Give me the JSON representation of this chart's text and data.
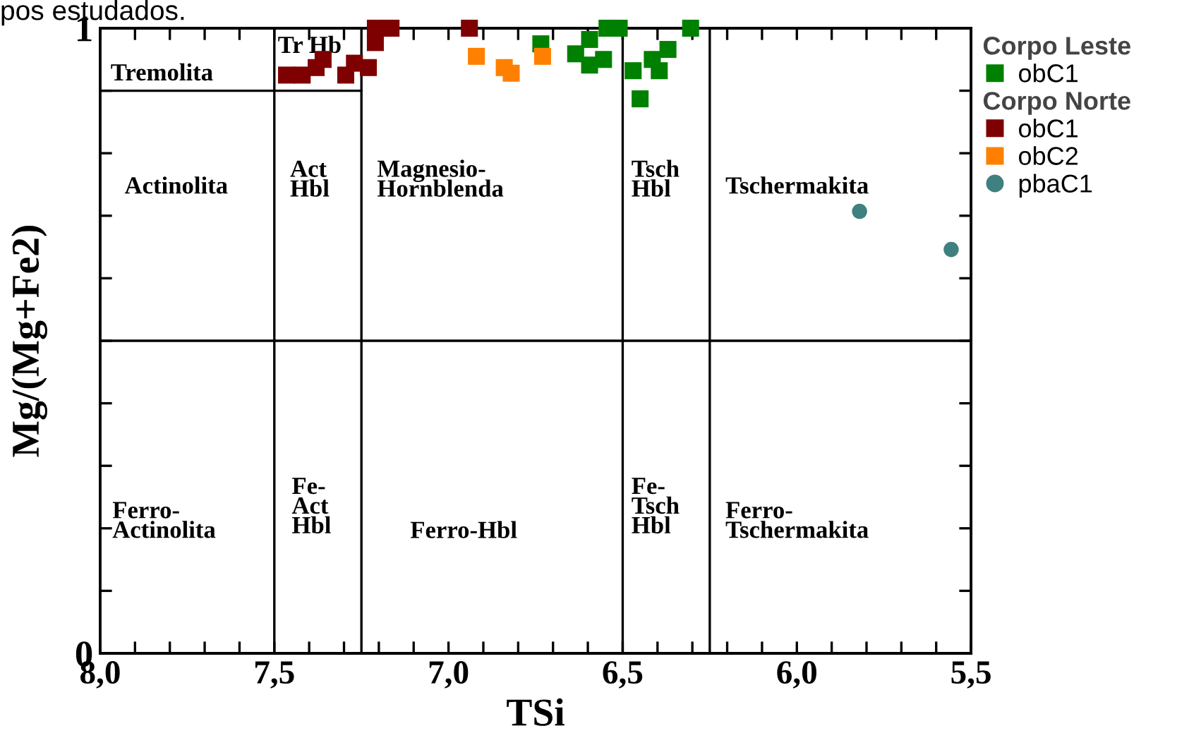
{
  "chart_data": {
    "type": "scatter",
    "xlabel": "TSi",
    "ylabel": "Mg/(Mg+Fe2)",
    "xlim": [
      8.0,
      5.5
    ],
    "ylim": [
      0,
      1
    ],
    "xticks": [
      {
        "value": 8.0,
        "label": "8,0"
      },
      {
        "value": 7.9,
        "label": null
      },
      {
        "value": 7.8,
        "label": null
      },
      {
        "value": 7.7,
        "label": null
      },
      {
        "value": 7.6,
        "label": null
      },
      {
        "value": 7.5,
        "label": "7,5"
      },
      {
        "value": 7.4,
        "label": null
      },
      {
        "value": 7.3,
        "label": null
      },
      {
        "value": 7.2,
        "label": null
      },
      {
        "value": 7.1,
        "label": null
      },
      {
        "value": 7.0,
        "label": "7,0"
      },
      {
        "value": 6.9,
        "label": null
      },
      {
        "value": 6.8,
        "label": null
      },
      {
        "value": 6.7,
        "label": null
      },
      {
        "value": 6.6,
        "label": null
      },
      {
        "value": 6.5,
        "label": "6,5"
      },
      {
        "value": 6.4,
        "label": null
      },
      {
        "value": 6.3,
        "label": null
      },
      {
        "value": 6.2,
        "label": null
      },
      {
        "value": 6.1,
        "label": null
      },
      {
        "value": 6.0,
        "label": "6,0"
      },
      {
        "value": 5.9,
        "label": null
      },
      {
        "value": 5.8,
        "label": null
      },
      {
        "value": 5.7,
        "label": null
      },
      {
        "value": 5.6,
        "label": null
      },
      {
        "value": 5.5,
        "label": "5,5"
      }
    ],
    "yticks": [
      0,
      {
        "value": 0.1,
        "label": null
      },
      {
        "value": 0.2,
        "label": null
      },
      {
        "value": 0.3,
        "label": null
      },
      {
        "value": 0.4,
        "label": null
      },
      {
        "value": 0.5,
        "label": null
      },
      {
        "value": 0.6,
        "label": null
      },
      {
        "value": 0.7,
        "label": null
      },
      {
        "value": 0.8,
        "label": null
      },
      {
        "value": 0.9,
        "label": null
      },
      1
    ],
    "grid": false,
    "legend": "top right",
    "series": [
      {
        "name": "obC1",
        "color": "#008000",
        "marker": "square",
        "x": [
          6.735,
          6.575,
          6.545,
          6.51,
          6.595,
          6.635,
          6.595,
          6.555,
          6.47,
          6.415,
          6.395,
          6.37,
          6.45,
          6.305
        ],
        "values": [
          0.975,
          null,
          1.0,
          1.0,
          0.982,
          0.959,
          0.941,
          0.95,
          0.932,
          0.95,
          0.932,
          0.966,
          0.887,
          1.0
        ]
      },
      {
        "name": "obC1",
        "color": "#7f0000",
        "marker": "square",
        "x": [
          7.465,
          7.42,
          7.38,
          7.36,
          7.295,
          7.27,
          7.23,
          7.21,
          7.21,
          7.165,
          6.94
        ],
        "values": [
          0.925,
          0.925,
          0.937,
          0.95,
          0.925,
          0.944,
          0.937,
          0.977,
          1.0,
          1.0,
          1.0
        ]
      },
      {
        "name": "obC2",
        "color": "#ff8000",
        "marker": "square",
        "x": [
          6.92,
          6.84,
          6.82,
          6.73
        ],
        "values": [
          0.955,
          0.937,
          0.928,
          0.955
        ]
      },
      {
        "name": "pbaC1",
        "color": "#3f8080",
        "marker": "circle",
        "x": [
          5.82,
          5.557
        ],
        "values": [
          0.707,
          0.646
        ]
      },
      {
        "type": "line",
        "color": "#000000",
        "marker": "none",
        "x": [
          8.0,
          7.25
        ],
        "values": [
          0.9,
          0.9
        ]
      }
    ],
    "ref_lines": [
      {
        "axis": "x",
        "value": 7.5,
        "color": "#000000"
      },
      {
        "axis": "x",
        "value": 7.25,
        "color": "#000000"
      },
      {
        "axis": "x",
        "value": 6.5,
        "color": "#000000"
      },
      {
        "axis": "x",
        "value": 6.25,
        "color": "#000000"
      },
      {
        "axis": "y",
        "value": 0.5,
        "color": "#000000"
      }
    ],
    "annotations": [
      "pos estudados.",
      "Corpo Leste",
      "Corpo Norte",
      "Tremolita",
      "Tr Hb",
      "Actinolita",
      "Act\nHbl",
      "Magnesio-\nHornblenda",
      "Tsch\nHbl",
      "Tschermakita",
      "Ferro-\nActinolita",
      "Fe-\nAct\nHbl",
      "Ferro-Hbl",
      "Fe-\nTsch\nHbl",
      "Ferro-\nTschermakita"
    ]
  }
}
